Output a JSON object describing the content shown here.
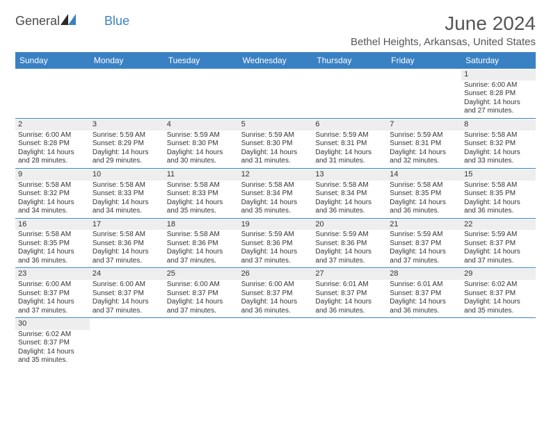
{
  "logo": {
    "text1": "General",
    "text2": "Blue",
    "color_dark": "#4a4a4a",
    "color_blue": "#3a81c4"
  },
  "title": "June 2024",
  "subtitle": "Bethel Heights, Arkansas, United States",
  "colors": {
    "header_bg": "#3a81c4",
    "header_text": "#ffffff",
    "num_bg": "#eeeeee",
    "divider": "#3a81c4",
    "body_text": "#333333"
  },
  "day_names": [
    "Sunday",
    "Monday",
    "Tuesday",
    "Wednesday",
    "Thursday",
    "Friday",
    "Saturday"
  ],
  "weeks": [
    [
      null,
      null,
      null,
      null,
      null,
      null,
      {
        "n": "1",
        "sr": "Sunrise: 6:00 AM",
        "ss": "Sunset: 8:28 PM",
        "d1": "Daylight: 14 hours",
        "d2": "and 27 minutes."
      }
    ],
    [
      {
        "n": "2",
        "sr": "Sunrise: 6:00 AM",
        "ss": "Sunset: 8:28 PM",
        "d1": "Daylight: 14 hours",
        "d2": "and 28 minutes."
      },
      {
        "n": "3",
        "sr": "Sunrise: 5:59 AM",
        "ss": "Sunset: 8:29 PM",
        "d1": "Daylight: 14 hours",
        "d2": "and 29 minutes."
      },
      {
        "n": "4",
        "sr": "Sunrise: 5:59 AM",
        "ss": "Sunset: 8:30 PM",
        "d1": "Daylight: 14 hours",
        "d2": "and 30 minutes."
      },
      {
        "n": "5",
        "sr": "Sunrise: 5:59 AM",
        "ss": "Sunset: 8:30 PM",
        "d1": "Daylight: 14 hours",
        "d2": "and 31 minutes."
      },
      {
        "n": "6",
        "sr": "Sunrise: 5:59 AM",
        "ss": "Sunset: 8:31 PM",
        "d1": "Daylight: 14 hours",
        "d2": "and 31 minutes."
      },
      {
        "n": "7",
        "sr": "Sunrise: 5:59 AM",
        "ss": "Sunset: 8:31 PM",
        "d1": "Daylight: 14 hours",
        "d2": "and 32 minutes."
      },
      {
        "n": "8",
        "sr": "Sunrise: 5:58 AM",
        "ss": "Sunset: 8:32 PM",
        "d1": "Daylight: 14 hours",
        "d2": "and 33 minutes."
      }
    ],
    [
      {
        "n": "9",
        "sr": "Sunrise: 5:58 AM",
        "ss": "Sunset: 8:32 PM",
        "d1": "Daylight: 14 hours",
        "d2": "and 34 minutes."
      },
      {
        "n": "10",
        "sr": "Sunrise: 5:58 AM",
        "ss": "Sunset: 8:33 PM",
        "d1": "Daylight: 14 hours",
        "d2": "and 34 minutes."
      },
      {
        "n": "11",
        "sr": "Sunrise: 5:58 AM",
        "ss": "Sunset: 8:33 PM",
        "d1": "Daylight: 14 hours",
        "d2": "and 35 minutes."
      },
      {
        "n": "12",
        "sr": "Sunrise: 5:58 AM",
        "ss": "Sunset: 8:34 PM",
        "d1": "Daylight: 14 hours",
        "d2": "and 35 minutes."
      },
      {
        "n": "13",
        "sr": "Sunrise: 5:58 AM",
        "ss": "Sunset: 8:34 PM",
        "d1": "Daylight: 14 hours",
        "d2": "and 36 minutes."
      },
      {
        "n": "14",
        "sr": "Sunrise: 5:58 AM",
        "ss": "Sunset: 8:35 PM",
        "d1": "Daylight: 14 hours",
        "d2": "and 36 minutes."
      },
      {
        "n": "15",
        "sr": "Sunrise: 5:58 AM",
        "ss": "Sunset: 8:35 PM",
        "d1": "Daylight: 14 hours",
        "d2": "and 36 minutes."
      }
    ],
    [
      {
        "n": "16",
        "sr": "Sunrise: 5:58 AM",
        "ss": "Sunset: 8:35 PM",
        "d1": "Daylight: 14 hours",
        "d2": "and 36 minutes."
      },
      {
        "n": "17",
        "sr": "Sunrise: 5:58 AM",
        "ss": "Sunset: 8:36 PM",
        "d1": "Daylight: 14 hours",
        "d2": "and 37 minutes."
      },
      {
        "n": "18",
        "sr": "Sunrise: 5:58 AM",
        "ss": "Sunset: 8:36 PM",
        "d1": "Daylight: 14 hours",
        "d2": "and 37 minutes."
      },
      {
        "n": "19",
        "sr": "Sunrise: 5:59 AM",
        "ss": "Sunset: 8:36 PM",
        "d1": "Daylight: 14 hours",
        "d2": "and 37 minutes."
      },
      {
        "n": "20",
        "sr": "Sunrise: 5:59 AM",
        "ss": "Sunset: 8:36 PM",
        "d1": "Daylight: 14 hours",
        "d2": "and 37 minutes."
      },
      {
        "n": "21",
        "sr": "Sunrise: 5:59 AM",
        "ss": "Sunset: 8:37 PM",
        "d1": "Daylight: 14 hours",
        "d2": "and 37 minutes."
      },
      {
        "n": "22",
        "sr": "Sunrise: 5:59 AM",
        "ss": "Sunset: 8:37 PM",
        "d1": "Daylight: 14 hours",
        "d2": "and 37 minutes."
      }
    ],
    [
      {
        "n": "23",
        "sr": "Sunrise: 6:00 AM",
        "ss": "Sunset: 8:37 PM",
        "d1": "Daylight: 14 hours",
        "d2": "and 37 minutes."
      },
      {
        "n": "24",
        "sr": "Sunrise: 6:00 AM",
        "ss": "Sunset: 8:37 PM",
        "d1": "Daylight: 14 hours",
        "d2": "and 37 minutes."
      },
      {
        "n": "25",
        "sr": "Sunrise: 6:00 AM",
        "ss": "Sunset: 8:37 PM",
        "d1": "Daylight: 14 hours",
        "d2": "and 37 minutes."
      },
      {
        "n": "26",
        "sr": "Sunrise: 6:00 AM",
        "ss": "Sunset: 8:37 PM",
        "d1": "Daylight: 14 hours",
        "d2": "and 36 minutes."
      },
      {
        "n": "27",
        "sr": "Sunrise: 6:01 AM",
        "ss": "Sunset: 8:37 PM",
        "d1": "Daylight: 14 hours",
        "d2": "and 36 minutes."
      },
      {
        "n": "28",
        "sr": "Sunrise: 6:01 AM",
        "ss": "Sunset: 8:37 PM",
        "d1": "Daylight: 14 hours",
        "d2": "and 36 minutes."
      },
      {
        "n": "29",
        "sr": "Sunrise: 6:02 AM",
        "ss": "Sunset: 8:37 PM",
        "d1": "Daylight: 14 hours",
        "d2": "and 35 minutes."
      }
    ],
    [
      {
        "n": "30",
        "sr": "Sunrise: 6:02 AM",
        "ss": "Sunset: 8:37 PM",
        "d1": "Daylight: 14 hours",
        "d2": "and 35 minutes."
      },
      null,
      null,
      null,
      null,
      null,
      null
    ]
  ]
}
